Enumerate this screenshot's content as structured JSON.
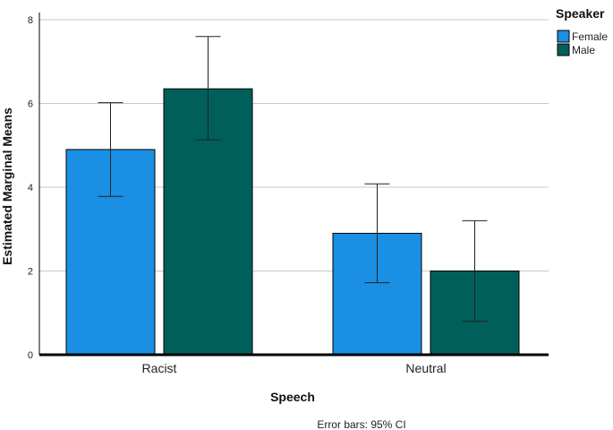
{
  "chart_data": {
    "type": "bar",
    "categories": [
      "Racist",
      "Neutral"
    ],
    "series": [
      {
        "name": "Female",
        "color": "#1a8fe3",
        "values": [
          4.9,
          2.9
        ],
        "ci_lower": [
          3.78,
          1.72
        ],
        "ci_upper": [
          6.02,
          4.08
        ]
      },
      {
        "name": "Male",
        "color": "#005f5a",
        "values": [
          6.35,
          2.0
        ],
        "ci_lower": [
          5.13,
          0.8
        ],
        "ci_upper": [
          7.6,
          3.2
        ]
      }
    ],
    "xlabel": "Speech",
    "ylabel": "Estimated Marginal Means",
    "ylim": [
      0,
      8
    ],
    "yticks": [
      "0",
      "2",
      "4",
      "6",
      "8"
    ],
    "legend_title": "Speaker",
    "legend_position": "top-right",
    "grid": true,
    "footnote": "Error bars: 95% CI"
  }
}
